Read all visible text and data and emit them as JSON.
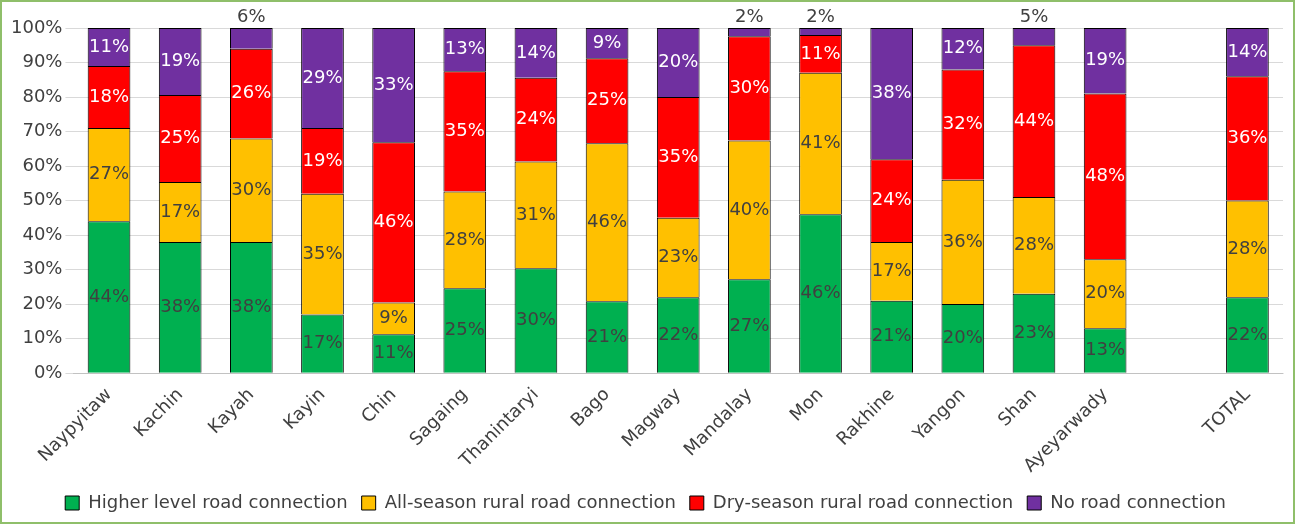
{
  "chart_data": {
    "type": "bar",
    "stacked": true,
    "categories": [
      "Naypyitaw",
      "Kachin",
      "Kayah",
      "Kayin",
      "Chin",
      "Sagaing",
      "Thanintaryi",
      "Bago",
      "Magway",
      "Mandalay",
      "Mon",
      "Rakhine",
      "Yangon",
      "Shan",
      "Ayeyarwady",
      null,
      "TOTAL"
    ],
    "series": [
      {
        "name": "Higher level road connection",
        "color": "#00b050",
        "values": [
          44,
          38,
          38,
          17,
          11.3,
          24.6,
          30.4,
          20.8,
          22,
          27.2,
          46,
          21,
          20,
          23,
          13,
          null,
          22
        ],
        "value_labels": [
          "44%",
          "38%",
          "38%",
          "17%",
          "11%",
          "25%",
          "30%",
          "21%",
          "22%",
          "27%",
          "46%",
          "21%",
          "20%",
          "23%",
          "13%",
          null,
          "22%"
        ]
      },
      {
        "name": "All-season rural road connection",
        "color": "#ffc000",
        "values": [
          27,
          17.4,
          30,
          35,
          9.2,
          28,
          30.9,
          45.8,
          23,
          40.2,
          41,
          17,
          36,
          28,
          20,
          null,
          28
        ],
        "value_labels": [
          "27%",
          "17%",
          "30%",
          "35%",
          "9%",
          "28%",
          "31%",
          "46%",
          "23%",
          "40%",
          "41%",
          "17%",
          "36%",
          "28%",
          "20%",
          null,
          "28%"
        ]
      },
      {
        "name": "Dry-season rural road connection",
        "color": "#ff0000",
        "values": [
          18,
          25.2,
          26,
          19,
          46.4,
          34.9,
          24.3,
          24.6,
          35,
          30.2,
          11,
          24,
          32,
          44,
          48,
          null,
          36
        ],
        "value_labels": [
          "18%",
          "25%",
          "26%",
          "19%",
          "46%",
          "35%",
          "24%",
          "25%",
          "35%",
          "30%",
          "11%",
          "24%",
          "32%",
          "44%",
          "48%",
          null,
          "36%"
        ]
      },
      {
        "name": "No road connection",
        "color": "#7030a0",
        "values": [
          11,
          19.4,
          6,
          29,
          33.1,
          12.5,
          14.4,
          8.8,
          20,
          2.4,
          2,
          38,
          12,
          5,
          19,
          null,
          14
        ],
        "value_labels": [
          "11%",
          "19%",
          "6%",
          "29%",
          "33%",
          "13%",
          "14%",
          "9%",
          "20%",
          "2%",
          "2%",
          "38%",
          "12%",
          "5%",
          "19%",
          null,
          "14%"
        ]
      }
    ],
    "ylim": [
      0,
      100
    ],
    "yticks": [
      {
        "value": 0,
        "label": "0%"
      },
      {
        "value": 10,
        "label": "10%"
      },
      {
        "value": 20,
        "label": "20%"
      },
      {
        "value": 30,
        "label": "30%"
      },
      {
        "value": 40,
        "label": "40%"
      },
      {
        "value": 50,
        "label": "50%"
      },
      {
        "value": 60,
        "label": "60%"
      },
      {
        "value": 70,
        "label": "70%"
      },
      {
        "value": 80,
        "label": "80%"
      },
      {
        "value": 90,
        "label": "90%"
      },
      {
        "value": 100,
        "label": "100%"
      }
    ],
    "grid": "y",
    "legend": "bottom"
  }
}
